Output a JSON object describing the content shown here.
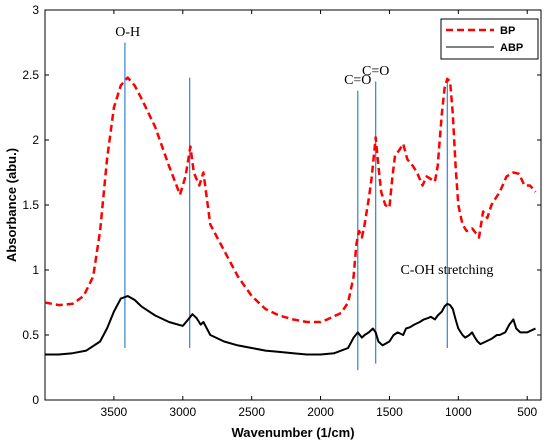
{
  "chart_data": {
    "type": "line",
    "title": "",
    "xlabel": "Wavenumber (1/cm)",
    "ylabel": "Absorbance (abu.)",
    "xlim": [
      4000,
      400
    ],
    "ylim": [
      0,
      3
    ],
    "x_reversed": true,
    "xticks": [
      "3500",
      "3000",
      "2500",
      "2000",
      "1500",
      "1000",
      "500"
    ],
    "yticks": [
      "0",
      "0.5",
      "1",
      "1.5",
      "2",
      "2.5",
      "3"
    ],
    "grid": false,
    "legend_position": "top-right",
    "series": [
      {
        "name": "BP",
        "color": "#ff0000",
        "style": "dashed",
        "points": [
          [
            4000,
            0.75
          ],
          [
            3900,
            0.73
          ],
          [
            3800,
            0.74
          ],
          [
            3720,
            0.8
          ],
          [
            3650,
            0.95
          ],
          [
            3600,
            1.3
          ],
          [
            3550,
            1.85
          ],
          [
            3500,
            2.25
          ],
          [
            3450,
            2.42
          ],
          [
            3400,
            2.48
          ],
          [
            3350,
            2.42
          ],
          [
            3300,
            2.32
          ],
          [
            3200,
            2.1
          ],
          [
            3100,
            1.8
          ],
          [
            3020,
            1.58
          ],
          [
            2980,
            1.72
          ],
          [
            2945,
            1.95
          ],
          [
            2920,
            1.75
          ],
          [
            2880,
            1.65
          ],
          [
            2850,
            1.75
          ],
          [
            2800,
            1.35
          ],
          [
            2700,
            1.15
          ],
          [
            2600,
            0.95
          ],
          [
            2500,
            0.8
          ],
          [
            2400,
            0.7
          ],
          [
            2300,
            0.65
          ],
          [
            2200,
            0.62
          ],
          [
            2100,
            0.6
          ],
          [
            2000,
            0.6
          ],
          [
            1950,
            0.62
          ],
          [
            1850,
            0.67
          ],
          [
            1800,
            0.75
          ],
          [
            1760,
            0.95
          ],
          [
            1740,
            1.2
          ],
          [
            1720,
            1.3
          ],
          [
            1700,
            1.25
          ],
          [
            1680,
            1.35
          ],
          [
            1650,
            1.55
          ],
          [
            1630,
            1.7
          ],
          [
            1600,
            2.02
          ],
          [
            1580,
            1.8
          ],
          [
            1560,
            1.6
          ],
          [
            1530,
            1.5
          ],
          [
            1500,
            1.48
          ],
          [
            1480,
            1.7
          ],
          [
            1460,
            1.88
          ],
          [
            1430,
            1.92
          ],
          [
            1400,
            1.97
          ],
          [
            1370,
            1.85
          ],
          [
            1330,
            1.8
          ],
          [
            1300,
            1.75
          ],
          [
            1260,
            1.65
          ],
          [
            1230,
            1.72
          ],
          [
            1200,
            1.7
          ],
          [
            1170,
            1.68
          ],
          [
            1150,
            1.8
          ],
          [
            1120,
            2.2
          ],
          [
            1100,
            2.4
          ],
          [
            1080,
            2.47
          ],
          [
            1060,
            2.45
          ],
          [
            1040,
            2.2
          ],
          [
            1020,
            1.8
          ],
          [
            1000,
            1.5
          ],
          [
            970,
            1.35
          ],
          [
            940,
            1.3
          ],
          [
            900,
            1.32
          ],
          [
            870,
            1.28
          ],
          [
            850,
            1.25
          ],
          [
            820,
            1.45
          ],
          [
            790,
            1.4
          ],
          [
            760,
            1.5
          ],
          [
            730,
            1.55
          ],
          [
            700,
            1.6
          ],
          [
            650,
            1.72
          ],
          [
            600,
            1.75
          ],
          [
            560,
            1.74
          ],
          [
            520,
            1.65
          ],
          [
            480,
            1.65
          ],
          [
            440,
            1.6
          ]
        ]
      },
      {
        "name": "ABP",
        "color": "#000000",
        "style": "solid",
        "points": [
          [
            4000,
            0.35
          ],
          [
            3900,
            0.35
          ],
          [
            3800,
            0.36
          ],
          [
            3700,
            0.38
          ],
          [
            3600,
            0.45
          ],
          [
            3550,
            0.55
          ],
          [
            3500,
            0.68
          ],
          [
            3450,
            0.78
          ],
          [
            3400,
            0.8
          ],
          [
            3350,
            0.77
          ],
          [
            3300,
            0.72
          ],
          [
            3200,
            0.65
          ],
          [
            3100,
            0.6
          ],
          [
            3000,
            0.57
          ],
          [
            2960,
            0.62
          ],
          [
            2930,
            0.66
          ],
          [
            2900,
            0.63
          ],
          [
            2870,
            0.58
          ],
          [
            2850,
            0.6
          ],
          [
            2800,
            0.5
          ],
          [
            2700,
            0.45
          ],
          [
            2600,
            0.42
          ],
          [
            2500,
            0.4
          ],
          [
            2400,
            0.38
          ],
          [
            2300,
            0.37
          ],
          [
            2200,
            0.36
          ],
          [
            2100,
            0.35
          ],
          [
            2000,
            0.35
          ],
          [
            1900,
            0.36
          ],
          [
            1800,
            0.4
          ],
          [
            1760,
            0.48
          ],
          [
            1730,
            0.52
          ],
          [
            1700,
            0.48
          ],
          [
            1680,
            0.5
          ],
          [
            1650,
            0.52
          ],
          [
            1620,
            0.55
          ],
          [
            1600,
            0.52
          ],
          [
            1580,
            0.45
          ],
          [
            1550,
            0.42
          ],
          [
            1500,
            0.45
          ],
          [
            1470,
            0.5
          ],
          [
            1440,
            0.52
          ],
          [
            1400,
            0.5
          ],
          [
            1380,
            0.55
          ],
          [
            1350,
            0.56
          ],
          [
            1320,
            0.58
          ],
          [
            1280,
            0.6
          ],
          [
            1250,
            0.62
          ],
          [
            1220,
            0.63
          ],
          [
            1200,
            0.64
          ],
          [
            1170,
            0.62
          ],
          [
            1150,
            0.65
          ],
          [
            1120,
            0.68
          ],
          [
            1100,
            0.72
          ],
          [
            1080,
            0.74
          ],
          [
            1060,
            0.73
          ],
          [
            1040,
            0.7
          ],
          [
            1020,
            0.62
          ],
          [
            1000,
            0.55
          ],
          [
            970,
            0.5
          ],
          [
            950,
            0.48
          ],
          [
            920,
            0.5
          ],
          [
            900,
            0.52
          ],
          [
            880,
            0.48
          ],
          [
            860,
            0.45
          ],
          [
            840,
            0.43
          ],
          [
            800,
            0.45
          ],
          [
            760,
            0.47
          ],
          [
            720,
            0.5
          ],
          [
            700,
            0.5
          ],
          [
            660,
            0.52
          ],
          [
            630,
            0.58
          ],
          [
            600,
            0.62
          ],
          [
            580,
            0.55
          ],
          [
            550,
            0.52
          ],
          [
            500,
            0.52
          ],
          [
            460,
            0.54
          ],
          [
            440,
            0.55
          ]
        ]
      }
    ],
    "vlines": [
      3420,
      2950,
      1730,
      1600,
      1080
    ],
    "annotations": [
      {
        "text": "O-H",
        "x": 3400,
        "y": 2.8
      },
      {
        "text": "C=O",
        "x": 1730,
        "y": 2.43
      },
      {
        "text": "C=O",
        "x": 1600,
        "y": 2.5
      },
      {
        "text": "C-OH stretching",
        "x": 1420,
        "y": 0.97
      }
    ]
  }
}
